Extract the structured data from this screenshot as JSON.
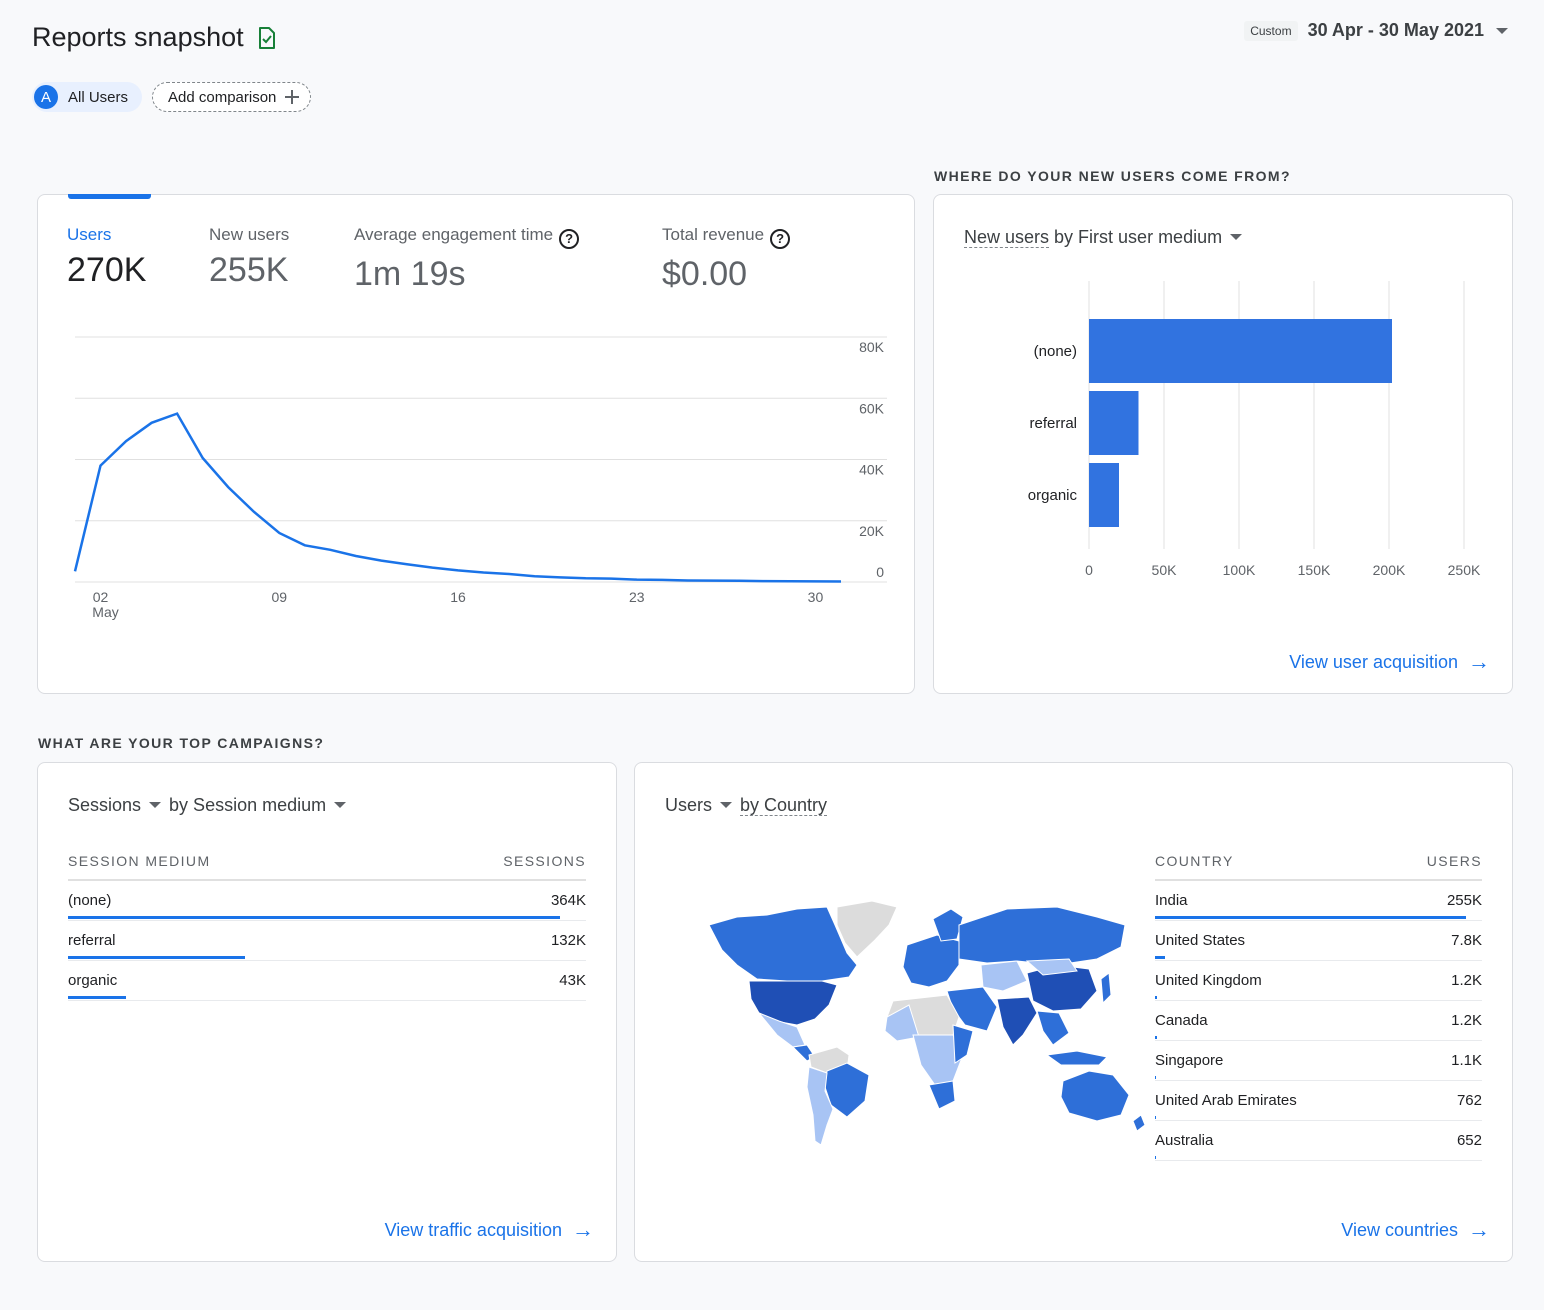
{
  "header": {
    "title": "Reports snapshot",
    "date_custom": "Custom",
    "date_range": "30 Apr - 30 May 2021"
  },
  "comparison": {
    "avatar_letter": "A",
    "all_users": "All Users",
    "add_comparison": "Add comparison"
  },
  "overview": {
    "metrics": [
      {
        "label": "Users",
        "value": "270K"
      },
      {
        "label": "New users",
        "value": "255K"
      },
      {
        "label": "Average engagement time",
        "value": "1m 19s"
      },
      {
        "label": "Total revenue",
        "value": "$0.00"
      }
    ],
    "help_glyph": "?"
  },
  "users_chart": {
    "chart_data": {
      "type": "line",
      "x": [
        1,
        2,
        3,
        4,
        5,
        6,
        7,
        8,
        9,
        10,
        11,
        12,
        13,
        14,
        15,
        16,
        17,
        18,
        19,
        20,
        21,
        22,
        23,
        24,
        25,
        26,
        27,
        28,
        29,
        30,
        31
      ],
      "x_ticks": [
        {
          "x": 2,
          "label": "02",
          "sublabel": "May"
        },
        {
          "x": 9,
          "label": "09"
        },
        {
          "x": 16,
          "label": "16"
        },
        {
          "x": 23,
          "label": "23"
        },
        {
          "x": 30,
          "label": "30"
        }
      ],
      "series": [
        {
          "values": [
            3500,
            38000,
            46000,
            52000,
            55000,
            40500,
            31000,
            23000,
            16000,
            12000,
            10500,
            8500,
            7000,
            5800,
            4700,
            3800,
            3100,
            2600,
            1900,
            1500,
            1200,
            1100,
            800,
            700,
            500,
            450,
            400,
            300,
            250,
            200,
            150
          ]
        }
      ],
      "y_ticks": [
        "80K",
        "60K",
        "40K",
        "20K",
        "0"
      ],
      "ylim": [
        0,
        80000
      ]
    }
  },
  "acquisition": {
    "section_label": "WHERE DO YOUR NEW USERS COME FROM?",
    "selector_metric": "New users",
    "selector_dim": "by First user medium",
    "link": "View user acquisition",
    "chart_data": {
      "type": "bar",
      "orientation": "horizontal",
      "categories": [
        "(none)",
        "referral",
        "organic"
      ],
      "values": [
        202000,
        33000,
        20000
      ],
      "x_ticks": [
        "0",
        "50K",
        "100K",
        "150K",
        "200K",
        "250K"
      ],
      "xlim": [
        0,
        250000
      ]
    }
  },
  "campaigns": {
    "section_label": "WHAT ARE YOUR TOP CAMPAIGNS?",
    "selector_metric": "Sessions",
    "selector_dim": "by Session medium",
    "col_left": "SESSION MEDIUM",
    "col_right": "SESSIONS",
    "rows": [
      {
        "name": "(none)",
        "value": "364K",
        "fraction": 1.0
      },
      {
        "name": "referral",
        "value": "132K",
        "fraction": 0.36
      },
      {
        "name": "organic",
        "value": "43K",
        "fraction": 0.118
      }
    ],
    "link": "View traffic acquisition"
  },
  "countries": {
    "selector_metric": "Users",
    "selector_dim": "by Country",
    "col_left": "COUNTRY",
    "col_right": "USERS",
    "rows": [
      {
        "name": "India",
        "value": "255K",
        "fraction": 1.0
      },
      {
        "name": "United States",
        "value": "7.8K",
        "fraction": 0.031
      },
      {
        "name": "United Kingdom",
        "value": "1.2K",
        "fraction": 0.005
      },
      {
        "name": "Canada",
        "value": "1.2K",
        "fraction": 0.005
      },
      {
        "name": "Singapore",
        "value": "1.1K",
        "fraction": 0.004
      },
      {
        "name": "United Arab Emirates",
        "value": "762",
        "fraction": 0.003
      },
      {
        "name": "Australia",
        "value": "652",
        "fraction": 0.003
      }
    ],
    "link": "View countries"
  },
  "colors": {
    "accent": "#1a73e8",
    "bar": "#3173e0",
    "map_dark": "#1f4fb5",
    "map_mid": "#2e6fd8",
    "map_light": "#a8c4f4",
    "map_none": "#dcdcdc"
  },
  "arrow_glyph": "→"
}
